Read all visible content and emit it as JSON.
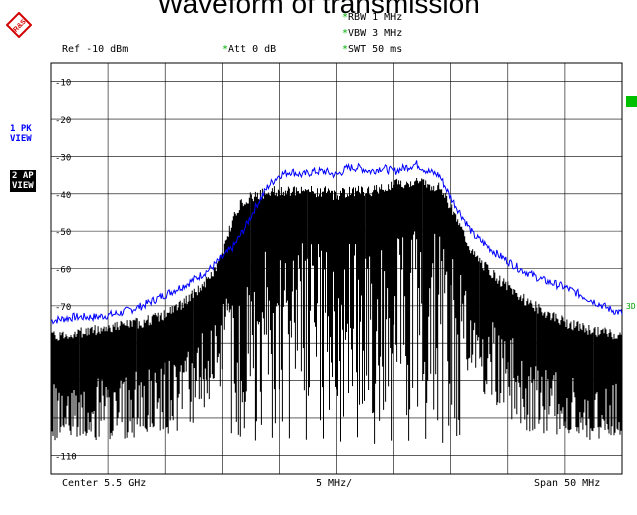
{
  "chart_data": {
    "type": "line",
    "title": "Waveform of transmission",
    "x_unit": "MHz",
    "xlim": [
      5475,
      5525
    ],
    "ylim": [
      -115,
      -5
    ],
    "y_unit": "dBm",
    "yticks": [
      "-10",
      "-20",
      "-30",
      "-40",
      "-50",
      "-60",
      "-70",
      "",
      "",
      "",
      "-110"
    ],
    "grid": true,
    "series": [
      {
        "name": "1 PK VIEW",
        "color": "#0000ff",
        "x": [
          5475,
          5477,
          5479,
          5481,
          5483,
          5485,
          5487,
          5489,
          5490,
          5491,
          5492,
          5493,
          5494,
          5495,
          5496,
          5497,
          5498,
          5499,
          5500,
          5501,
          5502,
          5503,
          5504,
          5505,
          5506,
          5507,
          5508,
          5509,
          5510,
          5512,
          5514,
          5516,
          5518,
          5520,
          5522,
          5524,
          5525
        ],
        "y": [
          -74,
          -73,
          -73,
          -72,
          -70,
          -67,
          -64,
          -60,
          -57,
          -54,
          -49,
          -43,
          -38,
          -35,
          -34,
          -35,
          -34,
          -34,
          -35,
          -33,
          -33,
          -34,
          -33,
          -34,
          -33,
          -32,
          -34,
          -35,
          -41,
          -51,
          -56,
          -60,
          -63,
          -65,
          -68,
          -71,
          -72
        ]
      },
      {
        "name": "2 AP VIEW",
        "color": "#000000",
        "x": [
          5475,
          5477,
          5479,
          5481,
          5483,
          5485,
          5487,
          5489,
          5490,
          5491,
          5492,
          5493,
          5494,
          5495,
          5496,
          5497,
          5498,
          5499,
          5500,
          5501,
          5502,
          5503,
          5504,
          5505,
          5506,
          5507,
          5508,
          5509,
          5510,
          5512,
          5514,
          5516,
          5518,
          5520,
          5522,
          5524,
          5525
        ],
        "y": [
          -79,
          -78,
          -77,
          -76,
          -75,
          -73,
          -69,
          -63,
          -57,
          -46,
          -42,
          -41,
          -40,
          -40,
          -40,
          -40,
          -40,
          -40,
          -41,
          -40,
          -40,
          -40,
          -39,
          -38,
          -38,
          -37,
          -38,
          -39,
          -44,
          -57,
          -63,
          -68,
          -72,
          -75,
          -77,
          -78,
          -79
        ]
      }
    ]
  },
  "header": {
    "logo_text": "R&S",
    "ref_level": "Ref -10 dBm",
    "att_star": "*",
    "att": "Att  0 dB",
    "rbw_star": "*",
    "rbw": "RBW 1 MHz",
    "vbw_star": "*",
    "vbw": "VBW 3 MHz",
    "swt_star": "*",
    "swt": "SWT 50 ms"
  },
  "side": {
    "trace1_line1": "1 PK",
    "trace1_line2": "VIEW",
    "trace2_line1": "2 AP",
    "trace2_line2": "VIEW",
    "marker3": "3D"
  },
  "footer": {
    "center": "Center 5.5 GHz",
    "div": "5 MHz/",
    "span": "Span 50 MHz"
  }
}
